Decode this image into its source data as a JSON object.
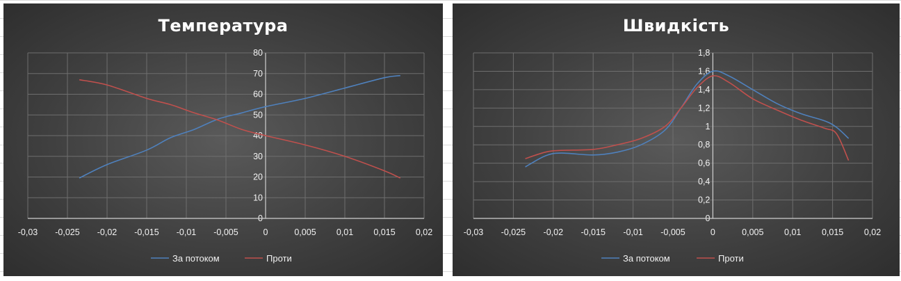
{
  "chart_data": [
    {
      "type": "line",
      "title": "Температура",
      "xlim": [
        -0.03,
        0.02
      ],
      "ylim": [
        0,
        80
      ],
      "x_ticks": [
        "-0,03",
        "-0,025",
        "-0,02",
        "-0,015",
        "-0,01",
        "-0,005",
        "0",
        "0,005",
        "0,01",
        "0,015",
        "0,02"
      ],
      "y_ticks": [
        "0",
        "10",
        "20",
        "30",
        "40",
        "50",
        "60",
        "70",
        "80"
      ],
      "grid": true,
      "legend_position": "bottom",
      "series": [
        {
          "name": "За потоком",
          "color": "#4f81bd",
          "x": [
            -0.0235,
            -0.02,
            -0.015,
            -0.012,
            -0.009,
            -0.006,
            -0.003,
            0,
            0.005,
            0.01,
            0.015,
            0.017
          ],
          "y": [
            19.5,
            26,
            33,
            39,
            43,
            48,
            51,
            54,
            58,
            63,
            68,
            69
          ]
        },
        {
          "name": "Проти",
          "color": "#c0504d",
          "x": [
            -0.0235,
            -0.02,
            -0.015,
            -0.012,
            -0.009,
            -0.006,
            -0.003,
            0,
            0.005,
            0.01,
            0.015,
            0.017
          ],
          "y": [
            67,
            64.5,
            58,
            55,
            51,
            47.5,
            43,
            40,
            35.5,
            30,
            23,
            19.5
          ]
        }
      ]
    },
    {
      "type": "line",
      "title": "Швидкість",
      "xlim": [
        -0.03,
        0.02
      ],
      "ylim": [
        0,
        1.8
      ],
      "x_ticks": [
        "-0,03",
        "-0,025",
        "-0,02",
        "-0,015",
        "-0,01",
        "-0,005",
        "0",
        "0,005",
        "0,01",
        "0,015",
        "0,02"
      ],
      "y_ticks": [
        "0",
        "0,2",
        "0,4",
        "0,6",
        "0,8",
        "1",
        "1,2",
        "1,4",
        "1,6",
        "1,8"
      ],
      "grid": true,
      "legend_position": "bottom",
      "series": [
        {
          "name": "За потоком",
          "color": "#4f81bd",
          "x": [
            -0.0235,
            -0.021,
            -0.019,
            -0.015,
            -0.012,
            -0.009,
            -0.006,
            -0.004,
            -0.002,
            0,
            0.002,
            0.005,
            0.008,
            0.011,
            0.014,
            0.0155,
            0.017
          ],
          "y": [
            0.56,
            0.68,
            0.71,
            0.69,
            0.72,
            0.8,
            0.96,
            1.2,
            1.46,
            1.6,
            1.55,
            1.4,
            1.25,
            1.14,
            1.06,
            0.99,
            0.87
          ]
        },
        {
          "name": "Проти",
          "color": "#c0504d",
          "x": [
            -0.0235,
            -0.021,
            -0.019,
            -0.015,
            -0.012,
            -0.009,
            -0.006,
            -0.004,
            -0.002,
            0,
            0.002,
            0.005,
            0.008,
            0.011,
            0.014,
            0.0155,
            0.017
          ],
          "y": [
            0.65,
            0.72,
            0.74,
            0.75,
            0.8,
            0.87,
            1.0,
            1.2,
            1.42,
            1.55,
            1.48,
            1.3,
            1.18,
            1.07,
            0.98,
            0.92,
            0.63
          ]
        }
      ]
    }
  ]
}
